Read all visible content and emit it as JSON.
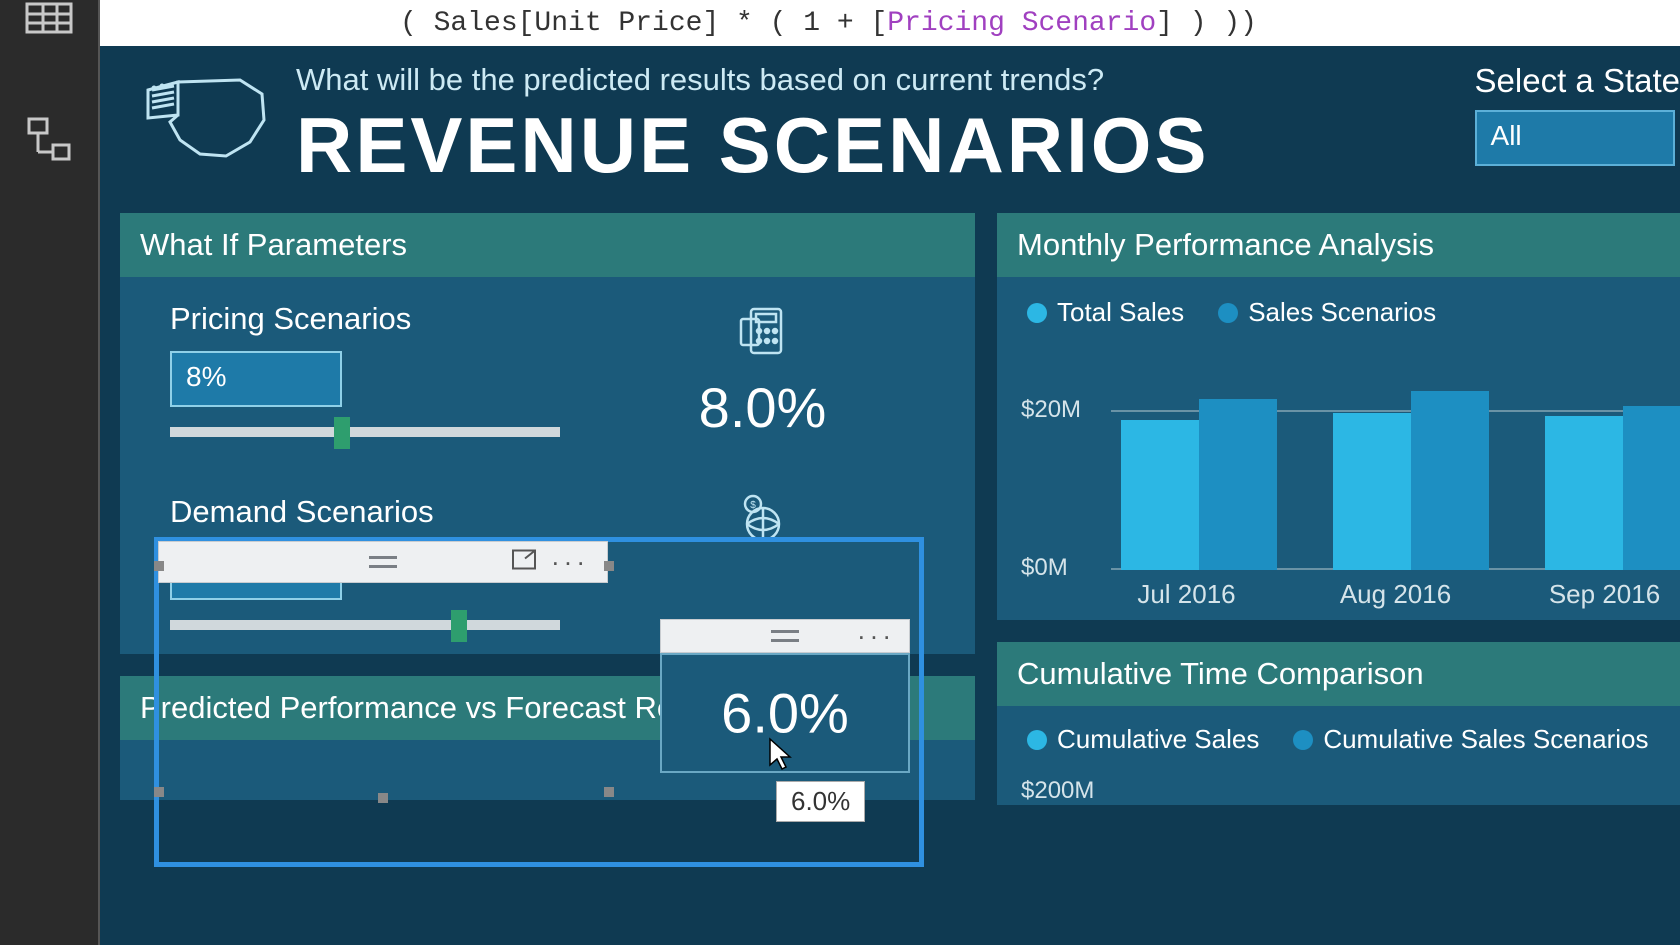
{
  "formula": {
    "prefix": "( Sales[Unit Price] * ( 1 + [",
    "variable": "Pricing Scenario",
    "suffix": "] ) ))"
  },
  "header": {
    "subtitle": "What will be the predicted results based on current trends?",
    "title": "REVENUE SCENARIOS",
    "state_label": "Select a State",
    "state_value": "All"
  },
  "panels": {
    "whatif_title": "What If Parameters",
    "monthly_title": "Monthly Performance Analysis",
    "predicted_title": "Predicted Performance vs Forecast Results",
    "cumulative_title": "Cumulative Time Comparison"
  },
  "pricing": {
    "label": "Pricing Scenarios",
    "box_value": "8%",
    "display_value": "8.0%",
    "slider_pct": 42
  },
  "demand": {
    "label": "Demand Scenarios",
    "box_value": "6%",
    "display_value": "6.0%",
    "tooltip": "6.0%",
    "slider_pct": 72
  },
  "monthly_chart": {
    "type": "bar",
    "legend": [
      {
        "label": "Total Sales",
        "color": "#2cb7e4"
      },
      {
        "label": "Sales Scenarios",
        "color": "#1d8fc2"
      }
    ],
    "y_ticks": [
      {
        "label": "$20M",
        "value": 20
      },
      {
        "label": "$0M",
        "value": 0
      }
    ],
    "y_max": 28,
    "categories": [
      "Jul 2016",
      "Aug 2016",
      "Sep 2016"
    ],
    "series": [
      {
        "name": "Total Sales",
        "color": "#2cb7e4",
        "values": [
          21,
          22,
          21.5
        ]
      },
      {
        "name": "Sales Scenarios",
        "color": "#1d8fc2",
        "values": [
          24,
          25,
          23
        ]
      }
    ],
    "grid_color": "#6a93a6",
    "background": "#1b5a7a"
  },
  "cumulative_chart": {
    "legend": [
      {
        "label": "Cumulative Sales",
        "color": "#2cb7e4"
      },
      {
        "label": "Cumulative Sales Scenarios",
        "color": "#1d8fc2"
      }
    ],
    "y_tick": "$200M"
  },
  "colors": {
    "panel_bg": "#1b5a7a",
    "panel_header": "#2c7a7a",
    "page_bg": "#0f3a52",
    "selection_blue": "#2f90e0",
    "input_bg": "#1e7aa8",
    "input_border": "#8fd0e8",
    "slider_thumb": "#2e9e6e"
  }
}
